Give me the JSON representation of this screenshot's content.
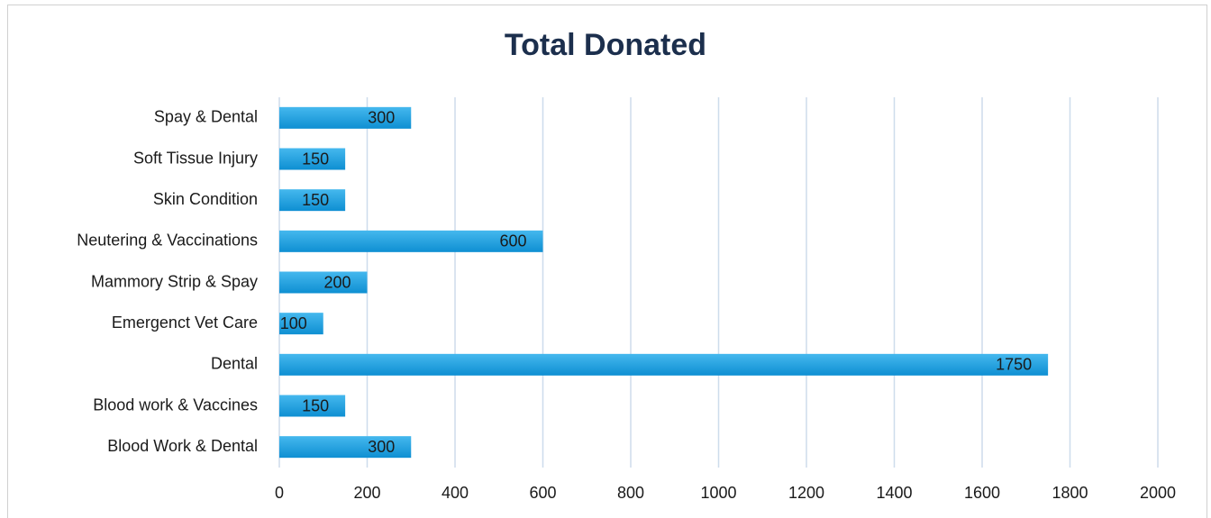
{
  "chart_data": {
    "type": "bar",
    "orientation": "horizontal",
    "title": "Total Donated",
    "categories": [
      "Spay & Dental",
      "Soft Tissue Injury",
      "Skin Condition",
      "Neutering & Vaccinations",
      "Mammory Strip & Spay",
      "Emergenct Vet Care",
      "Dental",
      "Blood work & Vaccines",
      "Blood Work & Dental"
    ],
    "values": [
      300,
      150,
      150,
      600,
      200,
      100,
      1750,
      150,
      300
    ],
    "color": "#1a9fe0",
    "xlim": [
      0,
      2000
    ],
    "xticks": [
      0,
      200,
      400,
      600,
      800,
      1000,
      1200,
      1400,
      1600,
      1800,
      2000
    ],
    "grid": true,
    "data_labels": true
  }
}
